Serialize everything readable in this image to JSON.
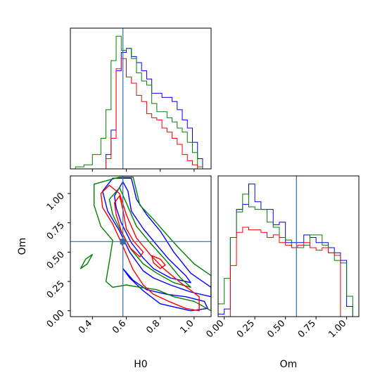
{
  "chart_data": {
    "type": "corner",
    "parameters": [
      "H0",
      "Om"
    ],
    "truths": {
      "H0": 0.58,
      "Om": 0.59
    },
    "colors": {
      "series_1": "#0000ff",
      "series_2": "#008000",
      "series_3": "#ff0000",
      "truth": "#2f6fa7"
    },
    "panels": {
      "h0_histogram": {
        "xlim": [
          0.27,
          1.1
        ],
        "bin_edges": [
          0.3,
          0.35,
          0.4,
          0.45,
          0.48,
          0.51,
          0.54,
          0.57,
          0.6,
          0.63,
          0.66,
          0.69,
          0.72,
          0.75,
          0.78,
          0.81,
          0.84,
          0.87,
          0.9,
          0.93,
          0.96,
          0.99,
          1.02,
          1.05,
          1.08
        ],
        "series": [
          {
            "color": "blue",
            "counts": [
              0,
              0,
              0,
              0,
              14,
              38,
              96,
              114,
              118,
              110,
              104,
              96,
              88,
              74,
              74,
              70,
              70,
              66,
              58,
              48,
              40,
              26,
              10,
              0
            ]
          },
          {
            "color": "green",
            "counts": [
              2,
              4,
              14,
              30,
              58,
              106,
              130,
              116,
              118,
              108,
              94,
              86,
              82,
              64,
              56,
              56,
              50,
              46,
              40,
              36,
              26,
              16,
              2,
              0
            ]
          },
          {
            "color": "red",
            "counts": [
              0,
              0,
              0,
              0,
              10,
              30,
              98,
              108,
              90,
              84,
              72,
              66,
              54,
              50,
              48,
              40,
              36,
              30,
              24,
              14,
              8,
              4,
              0,
              0
            ]
          }
        ],
        "xticks": [
          0.4,
          0.6,
          0.8,
          1.0
        ]
      },
      "om_histogram": {
        "xlim": [
          -0.05,
          1.1
        ],
        "bin_edges": [
          -0.05,
          0.0,
          0.05,
          0.1,
          0.15,
          0.2,
          0.25,
          0.3,
          0.35,
          0.4,
          0.45,
          0.5,
          0.55,
          0.6,
          0.65,
          0.7,
          0.75,
          0.8,
          0.85,
          0.9,
          0.95,
          1.0,
          1.05,
          1.1
        ],
        "series": [
          {
            "color": "blue",
            "counts": [
              2,
              6,
              62,
              84,
              88,
              104,
              90,
              84,
              84,
              72,
              74,
              58,
              58,
              58,
              64,
              62,
              58,
              58,
              54,
              50,
              44,
              8,
              0
            ]
          },
          {
            "color": "green",
            "counts": [
              10,
              30,
              62,
              82,
              96,
              86,
              84,
              84,
              74,
              70,
              62,
              60,
              54,
              54,
              56,
              64,
              64,
              56,
              50,
              44,
              42,
              16,
              0
            ]
          },
          {
            "color": "red",
            "counts": [
              0,
              0,
              40,
              66,
              70,
              68,
              68,
              66,
              62,
              64,
              58,
              56,
              54,
              56,
              58,
              54,
              52,
              54,
              50,
              48,
              0,
              0,
              0
            ]
          }
        ],
        "xticks": [
          0.0,
          0.25,
          0.5,
          0.75,
          1.0
        ],
        "xtick_labels": [
          "0.00",
          "0.25",
          "0.50",
          "0.75",
          "1.00"
        ],
        "xlabel": "Om"
      },
      "joint": {
        "xlim": [
          0.27,
          1.1
        ],
        "ylim": [
          -0.05,
          1.15
        ],
        "xticks": [
          0.4,
          0.6,
          0.8,
          1.0
        ],
        "xtick_labels": [
          "0.4",
          "0.6",
          "0.8",
          "1.0"
        ],
        "yticks": [
          0.0,
          0.25,
          0.5,
          0.75,
          1.0
        ],
        "ytick_labels": [
          "0.00",
          "0.25",
          "0.50",
          "0.75",
          "1.00"
        ],
        "xlabel": "H0",
        "ylabel": "Om",
        "contours": [
          {
            "color": "blue",
            "level": "outer",
            "points": [
              [
                0.46,
                1.02
              ],
              [
                0.52,
                1.13
              ],
              [
                0.63,
                1.13
              ],
              [
                0.66,
                0.95
              ],
              [
                0.72,
                0.82
              ],
              [
                0.8,
                0.68
              ],
              [
                0.88,
                0.5
              ],
              [
                0.98,
                0.32
              ],
              [
                1.1,
                0.2
              ],
              [
                1.1,
                0.12
              ],
              [
                0.98,
                0.16
              ],
              [
                0.86,
                0.22
              ],
              [
                0.76,
                0.28
              ],
              [
                0.7,
                0.34
              ],
              [
                0.62,
                0.5
              ],
              [
                0.56,
                0.68
              ],
              [
                0.49,
                0.85
              ]
            ]
          },
          {
            "color": "blue",
            "level": "inner",
            "points": [
              [
                0.53,
                0.98
              ],
              [
                0.58,
                1.1
              ],
              [
                0.61,
                1.02
              ],
              [
                0.63,
                0.85
              ],
              [
                0.7,
                0.7
              ],
              [
                0.78,
                0.56
              ],
              [
                0.85,
                0.44
              ],
              [
                0.95,
                0.3
              ],
              [
                0.98,
                0.24
              ],
              [
                0.86,
                0.28
              ],
              [
                0.76,
                0.36
              ],
              [
                0.7,
                0.45
              ],
              [
                0.63,
                0.58
              ],
              [
                0.57,
                0.75
              ],
              [
                0.54,
                0.88
              ]
            ]
          },
          {
            "color": "blue",
            "level": "lower",
            "points": [
              [
                0.58,
                0.36
              ],
              [
                0.62,
                0.28
              ],
              [
                0.7,
                0.17
              ],
              [
                0.8,
                0.06
              ],
              [
                0.98,
                0.0
              ],
              [
                1.08,
                0.02
              ],
              [
                1.06,
                0.08
              ],
              [
                0.95,
                0.12
              ],
              [
                0.84,
                0.14
              ],
              [
                0.72,
                0.18
              ],
              [
                0.64,
                0.26
              ]
            ]
          },
          {
            "color": "green",
            "level": "outer",
            "points": [
              [
                0.41,
                1.08
              ],
              [
                0.56,
                1.14
              ],
              [
                0.64,
                1.14
              ],
              [
                0.68,
                0.9
              ],
              [
                0.76,
                0.78
              ],
              [
                0.82,
                0.68
              ],
              [
                0.9,
                0.55
              ],
              [
                1.0,
                0.4
              ],
              [
                1.1,
                0.3
              ],
              [
                1.1,
                0.0
              ],
              [
                1.0,
                0.08
              ],
              [
                0.88,
                0.12
              ],
              [
                0.78,
                0.18
              ],
              [
                0.68,
                0.2
              ],
              [
                0.6,
                0.22
              ],
              [
                0.52,
                0.2
              ],
              [
                0.48,
                0.25
              ],
              [
                0.5,
                0.42
              ],
              [
                0.52,
                0.6
              ],
              [
                0.45,
                0.72
              ],
              [
                0.41,
                0.9
              ]
            ]
          },
          {
            "color": "green",
            "level": "inner",
            "points": [
              [
                0.5,
                0.95
              ],
              [
                0.56,
                1.05
              ],
              [
                0.6,
                0.92
              ],
              [
                0.66,
                0.72
              ],
              [
                0.74,
                0.58
              ],
              [
                0.84,
                0.42
              ],
              [
                0.92,
                0.28
              ],
              [
                0.98,
                0.2
              ],
              [
                0.88,
                0.24
              ],
              [
                0.78,
                0.32
              ],
              [
                0.7,
                0.4
              ],
              [
                0.63,
                0.52
              ],
              [
                0.56,
                0.7
              ],
              [
                0.52,
                0.82
              ]
            ]
          },
          {
            "color": "green",
            "level": "island",
            "points": [
              [
                0.33,
                0.36
              ],
              [
                0.36,
                0.44
              ],
              [
                0.4,
                0.48
              ],
              [
                0.37,
                0.4
              ]
            ]
          },
          {
            "color": "red",
            "level": "outer",
            "points": [
              [
                0.45,
                1.0
              ],
              [
                0.5,
                1.07
              ],
              [
                0.56,
                1.0
              ],
              [
                0.6,
                0.82
              ],
              [
                0.66,
                0.62
              ],
              [
                0.74,
                0.48
              ],
              [
                0.82,
                0.36
              ],
              [
                0.92,
                0.24
              ],
              [
                1.03,
                0.12
              ],
              [
                1.03,
                0.0
              ],
              [
                0.95,
                0.02
              ],
              [
                0.85,
                0.08
              ],
              [
                0.76,
                0.14
              ],
              [
                0.7,
                0.22
              ],
              [
                0.64,
                0.35
              ],
              [
                0.58,
                0.55
              ],
              [
                0.52,
                0.74
              ],
              [
                0.46,
                0.88
              ]
            ]
          },
          {
            "color": "red",
            "level": "inner",
            "points": [
              [
                0.53,
                0.92
              ],
              [
                0.56,
                0.98
              ],
              [
                0.58,
                0.86
              ],
              [
                0.6,
                0.7
              ],
              [
                0.64,
                0.6
              ],
              [
                0.7,
                0.5
              ],
              [
                0.68,
                0.46
              ],
              [
                0.62,
                0.54
              ],
              [
                0.57,
                0.68
              ],
              [
                0.54,
                0.82
              ]
            ]
          },
          {
            "color": "red",
            "level": "small",
            "points": [
              [
                0.75,
                0.47
              ],
              [
                0.8,
                0.44
              ],
              [
                0.83,
                0.39
              ],
              [
                0.8,
                0.36
              ],
              [
                0.76,
                0.41
              ]
            ]
          }
        ]
      }
    }
  }
}
